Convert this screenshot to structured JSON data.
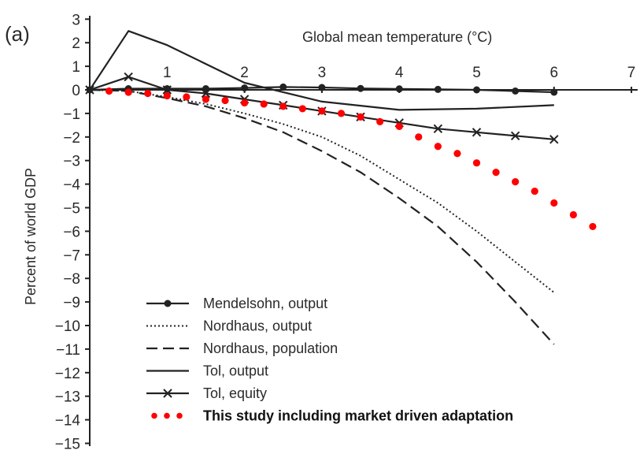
{
  "chart_data": {
    "type": "line",
    "panel_label": "(a)",
    "title": "",
    "xlabel": "Global mean temperature (°C)",
    "ylabel": "Percent of world GDP",
    "xlim": [
      0,
      7
    ],
    "ylim": [
      -15,
      3
    ],
    "x_ticks": [
      1,
      2,
      3,
      4,
      5,
      6,
      7
    ],
    "y_ticks": [
      3,
      2,
      1,
      0,
      -1,
      -2,
      -3,
      -4,
      -5,
      -6,
      -7,
      -8,
      -9,
      -10,
      -11,
      -12,
      -13,
      -14,
      -15
    ],
    "grid": false,
    "legend_position": "bottom-left",
    "series": [
      {
        "name": "Mendelsohn, output",
        "style": "solid-circle-markers",
        "color": "#222222",
        "x": [
          0,
          0.5,
          1,
          1.5,
          2,
          2.5,
          3,
          3.5,
          4,
          4.5,
          5,
          5.5,
          6
        ],
        "y": [
          0,
          0.05,
          0.05,
          0.05,
          0.08,
          0.12,
          0.1,
          0.06,
          0.04,
          0.02,
          0.0,
          -0.05,
          -0.1
        ]
      },
      {
        "name": "Nordhaus, output",
        "style": "dotted",
        "color": "#222222",
        "x": [
          0,
          0.5,
          1,
          1.5,
          2,
          2.5,
          3,
          3.5,
          4,
          4.5,
          5,
          5.5,
          6
        ],
        "y": [
          0,
          -0.05,
          -0.3,
          -0.6,
          -1.0,
          -1.45,
          -2.0,
          -2.8,
          -3.8,
          -4.8,
          -6.0,
          -7.3,
          -8.6
        ]
      },
      {
        "name": "Nordhaus, population",
        "style": "dashed",
        "color": "#222222",
        "x": [
          0,
          0.5,
          1,
          1.5,
          2,
          2.5,
          3,
          3.5,
          4,
          4.5,
          5,
          5.5,
          6
        ],
        "y": [
          0,
          -0.05,
          -0.35,
          -0.7,
          -1.2,
          -1.8,
          -2.6,
          -3.5,
          -4.6,
          -5.8,
          -7.3,
          -9.0,
          -10.8
        ]
      },
      {
        "name": "Tol, output",
        "style": "solid",
        "color": "#222222",
        "x": [
          0,
          0.5,
          1,
          2,
          3,
          4,
          5,
          6
        ],
        "y": [
          0,
          2.5,
          1.9,
          0.3,
          -0.5,
          -0.85,
          -0.8,
          -0.65
        ]
      },
      {
        "name": "Tol, equity",
        "style": "solid-x-markers",
        "color": "#222222",
        "x": [
          0,
          0.5,
          1,
          1.5,
          2,
          2.5,
          3,
          3.5,
          4,
          4.5,
          5,
          5.5,
          6
        ],
        "y": [
          0,
          0.55,
          0.0,
          -0.15,
          -0.4,
          -0.65,
          -0.9,
          -1.15,
          -1.4,
          -1.65,
          -1.8,
          -1.95,
          -2.1
        ]
      },
      {
        "name": "This study including market driven adaptation",
        "style": "red-dots",
        "color": "#ff0000",
        "x": [
          0.25,
          0.5,
          0.75,
          1.0,
          1.25,
          1.5,
          1.75,
          2.0,
          2.25,
          2.5,
          2.75,
          3.0,
          3.25,
          3.5,
          3.75,
          4.0,
          4.25,
          4.5,
          4.75,
          5.0,
          5.25,
          5.5,
          5.75,
          6.0,
          6.25,
          6.5
        ],
        "y": [
          -0.05,
          -0.1,
          -0.15,
          -0.25,
          -0.3,
          -0.4,
          -0.45,
          -0.55,
          -0.6,
          -0.7,
          -0.8,
          -0.9,
          -1.0,
          -1.15,
          -1.35,
          -1.55,
          -2.0,
          -2.4,
          -2.7,
          -3.1,
          -3.5,
          -3.9,
          -4.3,
          -4.8,
          -5.3,
          -5.8
        ]
      }
    ]
  }
}
